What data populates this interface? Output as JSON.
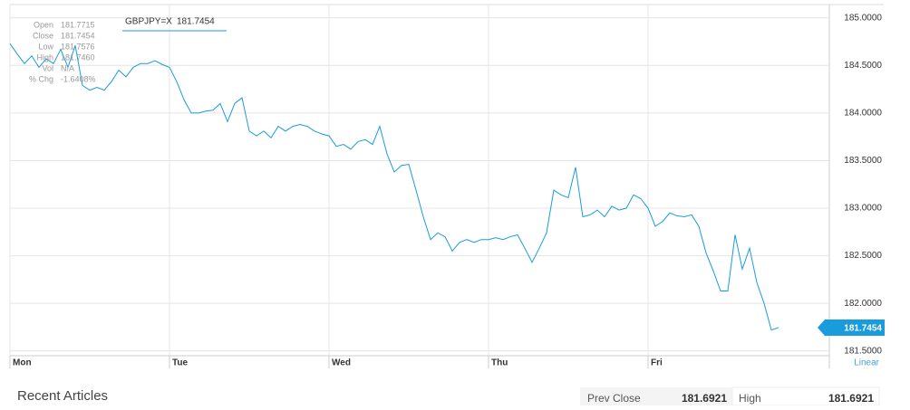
{
  "chart_data": {
    "type": "line",
    "legend_label": "GBPJPY=X",
    "current_value": 181.7454,
    "info": [
      {
        "label": "Open",
        "value": "181.7715"
      },
      {
        "label": "Close",
        "value": "181.7454"
      },
      {
        "label": "Low",
        "value": "181.7576"
      },
      {
        "label": "High",
        "value": "181.7460"
      },
      {
        "label": "Vol",
        "value": "N/A"
      },
      {
        "label": "% Chg",
        "value": "-1.6408%"
      }
    ],
    "scale_label": "Linear",
    "xlim": [
      0,
      113
    ],
    "xticks": [
      {
        "value": 0,
        "label": "Mon"
      },
      {
        "value": 22,
        "label": "Tue"
      },
      {
        "value": 44,
        "label": "Wed"
      },
      {
        "value": 66,
        "label": "Thu"
      },
      {
        "value": 88,
        "label": "Fri"
      }
    ],
    "ylim": [
      181.45,
      185.14
    ],
    "yticks": [
      {
        "value": 181.5,
        "label": "181.5000"
      },
      {
        "value": 182,
        "label": "182.0000"
      },
      {
        "value": 182.5,
        "label": "182.5000"
      },
      {
        "value": 183,
        "label": "183.0000"
      },
      {
        "value": 183.5,
        "label": "183.5000"
      },
      {
        "value": 184,
        "label": "184.0000"
      },
      {
        "value": 184.5,
        "label": "184.5000"
      },
      {
        "value": 185,
        "label": "185.0000"
      }
    ],
    "grid": true,
    "series": [
      {
        "name": "GBPJPY=X",
        "color": "#1a9bdc",
        "values": [
          184.73,
          184.62,
          184.52,
          184.6,
          184.48,
          184.57,
          184.52,
          184.67,
          184.48,
          184.71,
          184.29,
          184.24,
          184.27,
          184.24,
          184.33,
          184.45,
          184.38,
          184.48,
          184.52,
          184.52,
          184.55,
          184.51,
          184.48,
          184.33,
          184.14,
          184.0,
          184.0,
          184.02,
          184.03,
          184.1,
          183.91,
          184.1,
          184.16,
          183.81,
          183.76,
          183.81,
          183.74,
          183.86,
          183.81,
          183.86,
          183.88,
          183.86,
          183.81,
          183.78,
          183.76,
          183.65,
          183.67,
          183.62,
          183.7,
          183.72,
          183.67,
          183.86,
          183.57,
          183.38,
          183.45,
          183.46,
          183.19,
          182.91,
          182.67,
          182.74,
          182.7,
          182.55,
          182.64,
          182.67,
          182.64,
          182.67,
          182.67,
          182.69,
          182.67,
          182.7,
          182.72,
          182.58,
          182.43,
          182.58,
          182.74,
          183.19,
          183.14,
          183.11,
          183.43,
          182.91,
          182.93,
          182.98,
          182.91,
          183.02,
          182.98,
          183.0,
          183.14,
          183.1,
          183.0,
          182.81,
          182.86,
          182.95,
          182.92,
          182.91,
          182.93,
          182.81,
          182.53,
          182.34,
          182.13,
          182.13,
          182.72,
          182.36,
          182.58,
          182.22,
          182.0,
          181.72,
          181.7454
        ]
      }
    ]
  },
  "footer": {
    "recent_articles": "Recent Articles",
    "stats": [
      {
        "label": "Prev Close",
        "value": "181.6921"
      },
      {
        "label": "High",
        "value": "181.6921"
      }
    ]
  }
}
